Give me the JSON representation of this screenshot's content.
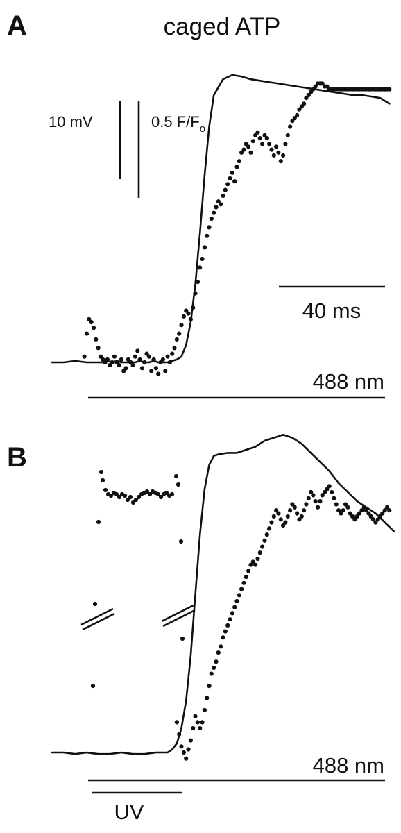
{
  "figure": {
    "title": "caged ATP",
    "panels": [
      {
        "id": "A",
        "scale_bars": {
          "voltage": "10 mV",
          "fluorescence": "0.5 F/F",
          "fluorescence_sub": "o",
          "time": "40 ms"
        },
        "illumination": [
          "488 nm"
        ]
      },
      {
        "id": "B",
        "illumination": [
          "488 nm",
          "UV"
        ]
      }
    ]
  },
  "chart_data": [
    {
      "panel": "A",
      "type": "line",
      "title": "",
      "xlabel": "",
      "ylabel": "",
      "xlim": [
        0,
        148
      ],
      "ylim": [
        -0.05,
        1.05
      ],
      "grid": false,
      "series": [
        {
          "kind": "line",
          "x": [
            0,
            5,
            10,
            15,
            20,
            22,
            24,
            26,
            28,
            30,
            32,
            34,
            36,
            38,
            40,
            42,
            44,
            46,
            48,
            50,
            52,
            54,
            56,
            58,
            60,
            62,
            64,
            66,
            68,
            70,
            74,
            78,
            82,
            86,
            90,
            94,
            98,
            102,
            106,
            110,
            114,
            118,
            122,
            126,
            130,
            134,
            138,
            142,
            146
          ],
          "y": [
            0.0,
            0.0,
            0.005,
            0.0,
            0.0,
            0.0,
            0.005,
            0.0,
            0.005,
            0.0,
            0.0,
            0.0,
            0.0,
            0.005,
            0.0,
            0.0,
            0.005,
            0.0,
            0.0,
            0.0,
            0.005,
            0.01,
            0.02,
            0.06,
            0.14,
            0.27,
            0.45,
            0.65,
            0.82,
            0.93,
            0.985,
            1.0,
            0.995,
            0.985,
            0.98,
            0.975,
            0.97,
            0.965,
            0.96,
            0.955,
            0.95,
            0.945,
            0.94,
            0.935,
            0.93,
            0.93,
            0.925,
            0.92,
            0.9
          ]
        },
        {
          "kind": "scatter",
          "x": [
            14,
            15,
            16,
            17,
            18,
            19,
            20,
            21,
            22,
            23,
            24,
            25,
            26,
            27,
            28,
            29,
            30,
            31,
            32,
            33,
            34,
            35,
            36,
            37,
            38,
            39,
            40,
            41,
            42,
            43,
            44,
            45,
            46,
            47,
            48,
            49,
            50,
            51,
            52,
            53,
            54,
            55,
            56,
            57,
            58,
            59,
            60,
            61,
            62,
            63,
            64,
            65,
            66,
            67,
            68,
            69,
            70,
            71,
            72,
            73,
            74,
            75,
            76,
            77,
            78,
            79,
            80,
            81,
            82,
            83,
            84,
            85,
            86,
            87,
            88,
            89,
            90,
            91,
            92,
            93,
            94,
            95,
            96,
            97,
            98,
            99,
            100,
            101,
            102,
            103,
            104,
            105,
            106,
            107,
            108,
            109,
            110,
            111,
            112,
            113,
            114,
            115,
            116,
            117,
            118,
            119,
            120,
            121,
            122,
            123,
            124,
            125,
            126,
            127,
            128,
            129,
            130,
            131,
            132,
            133,
            134,
            135,
            136,
            137,
            138,
            139,
            140,
            141,
            142,
            143,
            144,
            145,
            146
          ],
          "y": [
            0.02,
            0.1,
            0.15,
            0.14,
            0.12,
            0.08,
            0.05,
            0.02,
            0.01,
            0.0,
            0.01,
            -0.01,
            0.0,
            0.02,
            0.0,
            -0.01,
            0.01,
            -0.03,
            -0.02,
            0.01,
            0.0,
            -0.01,
            0.02,
            0.04,
            0.01,
            -0.02,
            0.0,
            0.03,
            0.02,
            -0.03,
            0.01,
            -0.02,
            -0.04,
            0.0,
            0.01,
            -0.03,
            0.02,
            0.0,
            0.03,
            0.05,
            0.08,
            0.1,
            0.13,
            0.16,
            0.18,
            0.17,
            0.15,
            0.19,
            0.24,
            0.28,
            0.33,
            0.36,
            0.4,
            0.44,
            0.47,
            0.5,
            0.52,
            0.54,
            0.56,
            0.55,
            0.58,
            0.6,
            0.62,
            0.64,
            0.66,
            0.63,
            0.68,
            0.7,
            0.73,
            0.74,
            0.76,
            0.75,
            0.73,
            0.77,
            0.79,
            0.8,
            0.78,
            0.76,
            0.79,
            0.78,
            0.76,
            0.74,
            0.72,
            0.75,
            0.73,
            0.7,
            0.72,
            0.76,
            0.79,
            0.82,
            0.84,
            0.85,
            0.86,
            0.88,
            0.89,
            0.9,
            0.92,
            0.93,
            0.94,
            0.95,
            0.96,
            0.97,
            0.97,
            0.97,
            0.96,
            0.96,
            0.95,
            0.95,
            0.95,
            0.95,
            0.95,
            0.95,
            0.95,
            0.95,
            0.95,
            0.95,
            0.95,
            0.95,
            0.95,
            0.95,
            0.95,
            0.95,
            0.95,
            0.95,
            0.95,
            0.95,
            0.95,
            0.95,
            0.95,
            0.95,
            0.95,
            0.95,
            0.95
          ]
        }
      ]
    },
    {
      "panel": "B",
      "type": "line",
      "title": "",
      "xlabel": "",
      "ylabel": "",
      "xlim": [
        0,
        148
      ],
      "ylim": [
        -0.05,
        1.05
      ],
      "grid": false,
      "series": [
        {
          "kind": "line",
          "x": [
            0,
            5,
            10,
            15,
            20,
            25,
            30,
            35,
            40,
            45,
            50,
            52,
            54,
            56,
            58,
            60,
            62,
            64,
            66,
            68,
            70,
            72,
            76,
            80,
            84,
            88,
            92,
            96,
            100,
            104,
            108,
            112,
            116,
            120,
            124,
            128,
            132,
            136,
            140,
            144,
            148
          ],
          "y": [
            0.0,
            0.0,
            -0.005,
            0.0,
            -0.005,
            -0.005,
            0.0,
            -0.005,
            -0.005,
            0.0,
            0.0,
            0.01,
            0.03,
            0.08,
            0.17,
            0.32,
            0.52,
            0.72,
            0.87,
            0.95,
            0.98,
            0.985,
            0.99,
            0.99,
            1.0,
            1.01,
            1.03,
            1.04,
            1.05,
            1.04,
            1.02,
            0.99,
            0.96,
            0.93,
            0.89,
            0.86,
            0.83,
            0.81,
            0.79,
            0.76,
            0.73
          ]
        },
        {
          "kind": "scatter",
          "x": [
            54,
            55,
            56,
            57,
            58,
            59,
            60,
            61,
            62,
            63,
            64,
            65,
            66,
            67,
            68,
            69,
            70,
            71,
            72,
            73,
            74,
            75,
            76,
            77,
            78,
            79,
            80,
            81,
            82,
            83,
            84,
            85,
            86,
            87,
            88,
            89,
            90,
            91,
            92,
            93,
            94,
            95,
            96,
            97,
            98,
            99,
            100,
            101,
            102,
            103,
            104,
            105,
            106,
            107,
            108,
            109,
            110,
            111,
            112,
            113,
            114,
            115,
            116,
            117,
            118,
            119,
            120,
            121,
            122,
            123,
            124,
            125,
            126,
            127,
            128,
            129,
            130,
            131,
            132,
            133,
            134,
            135,
            136,
            137,
            138,
            139,
            140,
            141,
            142,
            143,
            144,
            145,
            146
          ],
          "y": [
            0.1,
            0.06,
            0.02,
            0.0,
            -0.02,
            0.01,
            0.04,
            0.08,
            0.12,
            0.1,
            0.08,
            0.1,
            0.14,
            0.18,
            0.22,
            0.26,
            0.28,
            0.3,
            0.33,
            0.35,
            0.38,
            0.4,
            0.42,
            0.44,
            0.46,
            0.48,
            0.5,
            0.52,
            0.54,
            0.56,
            0.58,
            0.6,
            0.62,
            0.63,
            0.62,
            0.64,
            0.66,
            0.68,
            0.7,
            0.72,
            0.74,
            0.76,
            0.78,
            0.8,
            0.79,
            0.77,
            0.75,
            0.76,
            0.78,
            0.8,
            0.82,
            0.81,
            0.79,
            0.77,
            0.78,
            0.8,
            0.82,
            0.84,
            0.86,
            0.85,
            0.83,
            0.81,
            0.83,
            0.85,
            0.86,
            0.87,
            0.88,
            0.86,
            0.84,
            0.82,
            0.8,
            0.79,
            0.8,
            0.82,
            0.81,
            0.79,
            0.78,
            0.77,
            0.78,
            0.79,
            0.8,
            0.81,
            0.8,
            0.79,
            0.78,
            0.77,
            0.76,
            0.77,
            0.78,
            0.79,
            0.8,
            0.81,
            0.8
          ]
        }
      ]
    }
  ]
}
